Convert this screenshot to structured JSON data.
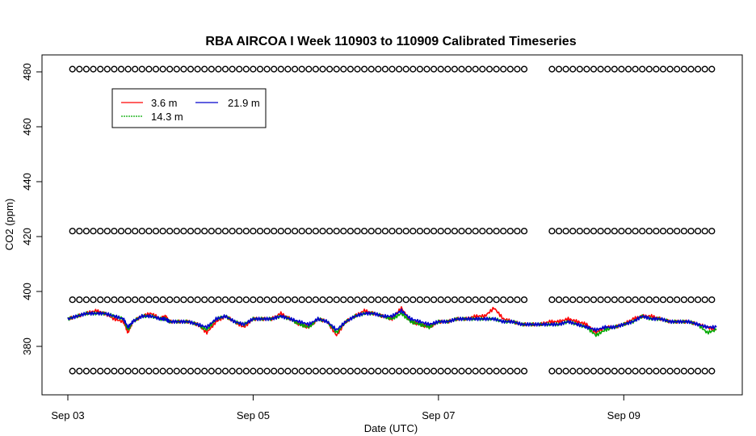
{
  "chart_data": {
    "type": "line",
    "title": "RBA AIRCOA I  Week 110903 to 110909  Calibrated Timeseries",
    "xlabel": "Date (UTC)",
    "ylabel": "CO2 (ppm)",
    "xlim": [
      0.0,
      7.0
    ],
    "ylim": [
      364,
      486
    ],
    "x_ticks": [
      {
        "value": 0,
        "label": "Sep 03"
      },
      {
        "value": 2,
        "label": "Sep 05"
      },
      {
        "value": 4,
        "label": "Sep 07"
      },
      {
        "value": 6,
        "label": "Sep 09"
      }
    ],
    "y_ticks": [
      380,
      400,
      420,
      440,
      460,
      480
    ],
    "grid": false,
    "legend": {
      "placement": "top-left",
      "entries": [
        {
          "label": "3.6 m",
          "color": "#ff0000"
        },
        {
          "label": "21.9 m",
          "color": "#0000cc"
        },
        {
          "label": "14.3 m",
          "color": "#00aa00"
        }
      ]
    },
    "series": [
      {
        "name": "3.6 m",
        "color": "#ff0000",
        "x": [
          0.0,
          0.1,
          0.2,
          0.3,
          0.4,
          0.5,
          0.6,
          0.65,
          0.7,
          0.8,
          0.9,
          1.0,
          1.05,
          1.1,
          1.2,
          1.3,
          1.4,
          1.5,
          1.6,
          1.7,
          1.8,
          1.9,
          2.0,
          2.1,
          2.2,
          2.3,
          2.4,
          2.5,
          2.6,
          2.7,
          2.8,
          2.9,
          3.0,
          3.1,
          3.2,
          3.3,
          3.4,
          3.5,
          3.6,
          3.7,
          3.8,
          3.9,
          4.0,
          4.1,
          4.2,
          4.3,
          4.4,
          4.5,
          4.6,
          4.7,
          4.8,
          4.9,
          5.0,
          5.1,
          5.2,
          5.3,
          5.4,
          5.5,
          5.6,
          5.7,
          5.8,
          5.9,
          6.0,
          6.1,
          6.2,
          6.3,
          6.4,
          6.5,
          6.6,
          6.7,
          6.8,
          6.9,
          7.0
        ],
        "y": [
          390,
          391,
          392,
          393,
          392,
          390,
          389,
          385,
          389,
          391,
          392,
          390,
          391,
          389,
          389,
          389,
          388,
          385,
          389,
          391,
          389,
          387,
          390,
          390,
          390,
          392,
          390,
          388,
          387,
          390,
          389,
          384,
          389,
          391,
          393,
          392,
          391,
          390,
          394,
          389,
          388,
          387,
          389,
          389,
          390,
          390,
          391,
          391,
          394,
          390,
          389,
          388,
          388,
          388,
          389,
          389,
          390,
          389,
          388,
          385,
          387,
          387,
          388,
          390,
          391,
          391,
          390,
          389,
          389,
          389,
          388,
          387,
          386
        ]
      },
      {
        "name": "21.9 m",
        "color": "#0000cc",
        "x": [
          0.0,
          0.1,
          0.2,
          0.3,
          0.4,
          0.5,
          0.6,
          0.65,
          0.7,
          0.8,
          0.9,
          1.0,
          1.05,
          1.1,
          1.2,
          1.3,
          1.4,
          1.5,
          1.6,
          1.7,
          1.8,
          1.9,
          2.0,
          2.1,
          2.2,
          2.3,
          2.4,
          2.5,
          2.6,
          2.7,
          2.8,
          2.9,
          3.0,
          3.1,
          3.2,
          3.3,
          3.4,
          3.5,
          3.6,
          3.7,
          3.8,
          3.9,
          4.0,
          4.1,
          4.2,
          4.3,
          4.4,
          4.5,
          4.6,
          4.7,
          4.8,
          4.9,
          5.0,
          5.1,
          5.2,
          5.3,
          5.4,
          5.5,
          5.6,
          5.7,
          5.8,
          5.9,
          6.0,
          6.1,
          6.2,
          6.3,
          6.4,
          6.5,
          6.6,
          6.7,
          6.8,
          6.9,
          7.0
        ],
        "y": [
          390,
          391,
          392,
          392,
          392,
          391,
          390,
          387,
          389,
          391,
          391,
          390,
          390,
          389,
          389,
          389,
          388,
          387,
          390,
          391,
          389,
          388,
          390,
          390,
          390,
          391,
          390,
          389,
          388,
          390,
          389,
          386,
          389,
          391,
          392,
          392,
          391,
          391,
          393,
          390,
          389,
          388,
          389,
          389,
          390,
          390,
          390,
          390,
          390,
          389,
          389,
          388,
          388,
          388,
          388,
          388,
          389,
          388,
          387,
          386,
          387,
          387,
          388,
          389,
          391,
          390,
          390,
          389,
          389,
          389,
          388,
          387,
          387
        ]
      },
      {
        "name": "14.3 m",
        "color": "#00aa00",
        "x": [
          0.0,
          0.1,
          0.2,
          0.3,
          0.4,
          0.5,
          0.6,
          0.65,
          0.7,
          0.8,
          0.9,
          1.0,
          1.05,
          1.1,
          1.2,
          1.3,
          1.4,
          1.5,
          1.6,
          1.7,
          1.8,
          1.9,
          2.0,
          2.1,
          2.2,
          2.3,
          2.4,
          2.5,
          2.6,
          2.7,
          2.8,
          2.9,
          3.0,
          3.1,
          3.2,
          3.3,
          3.4,
          3.5,
          3.6,
          3.7,
          3.8,
          3.9,
          4.0,
          4.1,
          4.2,
          4.3,
          4.4,
          4.5,
          4.6,
          4.7,
          4.8,
          4.9,
          5.0,
          5.1,
          5.2,
          5.3,
          5.4,
          5.5,
          5.6,
          5.7,
          5.8,
          5.9,
          6.0,
          6.1,
          6.2,
          6.3,
          6.4,
          6.5,
          6.6,
          6.7,
          6.8,
          6.9,
          7.0
        ],
        "y": [
          390,
          391,
          392,
          392,
          392,
          391,
          390,
          386,
          389,
          391,
          391,
          390,
          390,
          389,
          389,
          389,
          388,
          386,
          390,
          391,
          389,
          388,
          390,
          390,
          390,
          391,
          390,
          388,
          387,
          390,
          389,
          385,
          389,
          391,
          392,
          392,
          391,
          390,
          392,
          389,
          388,
          387,
          389,
          389,
          390,
          390,
          390,
          390,
          390,
          389,
          389,
          388,
          388,
          388,
          388,
          388,
          389,
          388,
          387,
          384,
          386,
          387,
          388,
          389,
          391,
          390,
          390,
          389,
          389,
          389,
          388,
          385,
          386
        ]
      },
      {
        "name": "",
        "color": "#000000",
        "marker": "circle",
        "x_start": 0.05,
        "x_end": 6.95,
        "x_step": 0.075,
        "gap": [
          5.0,
          5.2
        ],
        "levels": [
          371,
          397,
          422,
          481
        ]
      }
    ]
  }
}
